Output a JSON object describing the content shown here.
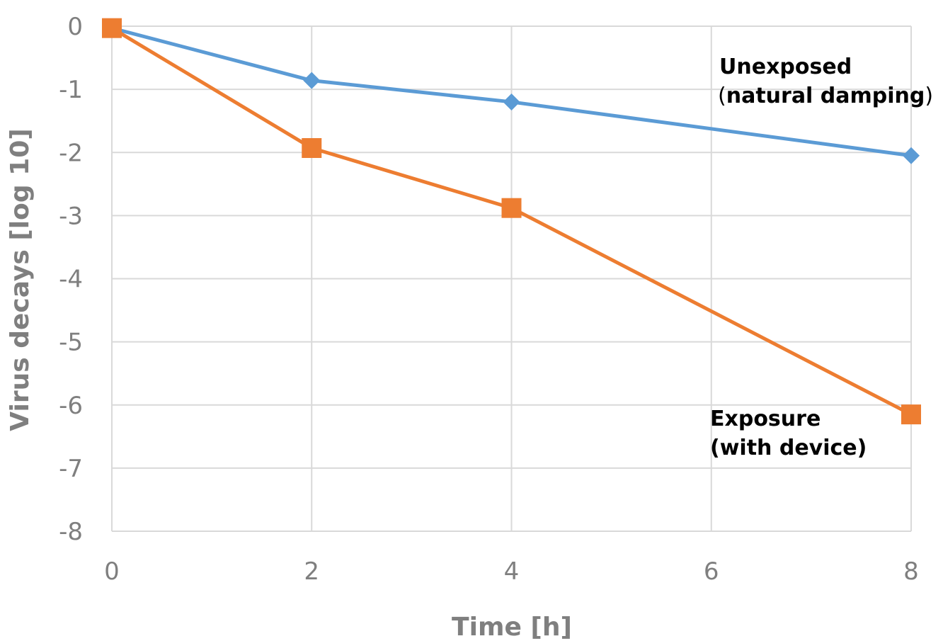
{
  "chart_data": {
    "type": "line",
    "title": "",
    "xlabel": "Time [h]",
    "ylabel": "Virus decays [log 10]",
    "xlim": [
      0,
      8
    ],
    "ylim": [
      -8,
      0
    ],
    "x_ticks": [
      "0",
      "2",
      "4",
      "6",
      "8"
    ],
    "y_ticks": [
      "0",
      "-1",
      "-2",
      "-3",
      "-4",
      "-5",
      "-6",
      "-7",
      "-8"
    ],
    "grid": true,
    "legend": "none",
    "series": [
      {
        "name": "Unexposed (natural damping)",
        "color": "#5b9bd5",
        "marker": "diamond",
        "x": [
          0,
          2,
          4,
          8
        ],
        "y": [
          -0.03,
          -0.86,
          -1.2,
          -2.05
        ]
      },
      {
        "name": "Exposure (with device)",
        "color": "#ed7d31",
        "marker": "square",
        "x": [
          0,
          2,
          4,
          8
        ],
        "y": [
          -0.03,
          -1.93,
          -2.88,
          -6.15
        ]
      }
    ],
    "annotations": {
      "unexposed_line1": "Unexposed",
      "unexposed_open": "(",
      "unexposed_line2": "natural damping",
      "unexposed_close": ")",
      "exposure_line1": "Exposure",
      "exposure_line2": "(with device)"
    }
  }
}
